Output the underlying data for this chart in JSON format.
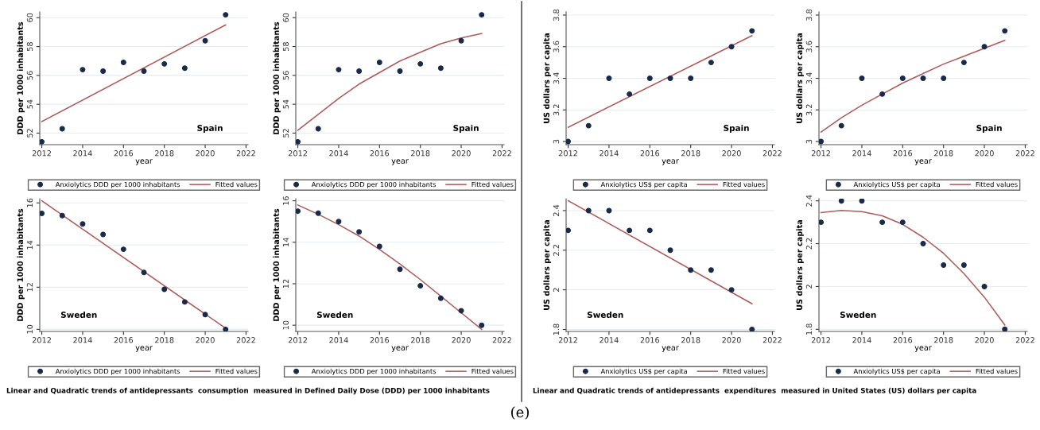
{
  "chart_data": [
    {
      "type": "scatter",
      "xlabel": "year",
      "ylabel": "DDD per 1000 inhabitants",
      "xlim": [
        2011.9,
        2022.1
      ],
      "xticks": [
        2012,
        2014,
        2016,
        2018,
        2020,
        2022
      ],
      "ylim": [
        51.2,
        60.4
      ],
      "yticks": [
        52,
        54,
        56,
        58,
        60
      ],
      "grid": "y",
      "legend": "bottom",
      "annotations": [
        "Spain"
      ],
      "series": [
        {
          "name": "Anxiolytics DDD per 1000 inhabitants",
          "marker": "circle",
          "color": "#1a2a4a",
          "x": [
            2012,
            2013,
            2014,
            2015,
            2016,
            2017,
            2018,
            2019,
            2020,
            2021
          ],
          "values": [
            51.4,
            52.3,
            56.4,
            56.3,
            56.9,
            56.3,
            56.8,
            56.5,
            58.4,
            60.2
          ]
        },
        {
          "name": "Fitted values",
          "type": "line",
          "color": "#b05a5a",
          "x": [
            2012,
            2021
          ],
          "values": [
            52.8,
            59.5
          ]
        }
      ]
    },
    {
      "type": "scatter",
      "xlabel": "year",
      "ylabel": "DDD per 1000 inhabitants",
      "xlim": [
        2011.9,
        2022.1
      ],
      "xticks": [
        2012,
        2014,
        2016,
        2018,
        2020,
        2022
      ],
      "ylim": [
        51.2,
        60.4
      ],
      "yticks": [
        52,
        54,
        56,
        58,
        60
      ],
      "grid": "y",
      "legend": "bottom",
      "annotations": [
        "Spain"
      ],
      "series": [
        {
          "name": "Anxiolytics DDD per 1000 inhabitants",
          "marker": "circle",
          "color": "#1a2a4a",
          "x": [
            2012,
            2013,
            2014,
            2015,
            2016,
            2017,
            2018,
            2019,
            2020,
            2021
          ],
          "values": [
            51.4,
            52.3,
            56.4,
            56.3,
            56.9,
            56.3,
            56.8,
            56.5,
            58.4,
            60.2
          ]
        },
        {
          "name": "Fitted values",
          "type": "line",
          "color": "#b05a5a",
          "x": [
            2012,
            2013,
            2014,
            2015,
            2016,
            2017,
            2018,
            2019,
            2020,
            2021
          ],
          "values": [
            52.2,
            53.3,
            54.4,
            55.4,
            56.2,
            57.0,
            57.6,
            58.2,
            58.6,
            58.9
          ]
        }
      ]
    },
    {
      "type": "scatter",
      "xlabel": "year",
      "ylabel": "US dollars per capita",
      "xlim": [
        2011.9,
        2022.1
      ],
      "xticks": [
        2012,
        2014,
        2016,
        2018,
        2020,
        2022
      ],
      "ylim": [
        2.98,
        3.82
      ],
      "yticks": [
        3,
        3.2,
        3.4,
        3.6,
        3.8
      ],
      "grid": "y",
      "legend": "bottom",
      "annotations": [
        "Spain"
      ],
      "series": [
        {
          "name": "Anxiolytics US$ per capita",
          "marker": "circle",
          "color": "#1a2a4a",
          "x": [
            2012,
            2013,
            2014,
            2015,
            2016,
            2017,
            2018,
            2019,
            2020,
            2021
          ],
          "values": [
            3.0,
            3.1,
            3.4,
            3.3,
            3.4,
            3.4,
            3.4,
            3.5,
            3.6,
            3.7
          ]
        },
        {
          "name": "Fitted values",
          "type": "line",
          "color": "#b05a5a",
          "x": [
            2012,
            2021
          ],
          "values": [
            3.09,
            3.67
          ]
        }
      ]
    },
    {
      "type": "scatter",
      "xlabel": "year",
      "ylabel": "US dollars per capita",
      "xlim": [
        2011.9,
        2022.1
      ],
      "xticks": [
        2012,
        2014,
        2016,
        2018,
        2020,
        2022
      ],
      "ylim": [
        2.98,
        3.82
      ],
      "yticks": [
        3,
        3.2,
        3.4,
        3.6,
        3.8
      ],
      "grid": "y",
      "legend": "bottom",
      "annotations": [
        "Spain"
      ],
      "series": [
        {
          "name": "Anxiolytics US$ per capita",
          "marker": "circle",
          "color": "#1a2a4a",
          "x": [
            2012,
            2013,
            2014,
            2015,
            2016,
            2017,
            2018,
            2019,
            2020,
            2021
          ],
          "values": [
            3.0,
            3.1,
            3.4,
            3.3,
            3.4,
            3.4,
            3.4,
            3.5,
            3.6,
            3.7
          ]
        },
        {
          "name": "Fitted values",
          "type": "line",
          "color": "#b05a5a",
          "x": [
            2012,
            2013,
            2014,
            2015,
            2016,
            2017,
            2018,
            2019,
            2020,
            2021
          ],
          "values": [
            3.06,
            3.15,
            3.23,
            3.3,
            3.37,
            3.43,
            3.49,
            3.54,
            3.59,
            3.64
          ]
        }
      ]
    },
    {
      "type": "scatter",
      "xlabel": "year",
      "ylabel": "DDD per 1000 inhabitants",
      "xlim": [
        2011.9,
        2022.1
      ],
      "xticks": [
        2012,
        2014,
        2016,
        2018,
        2020,
        2022
      ],
      "ylim": [
        9.9,
        16.2
      ],
      "yticks": [
        10,
        12,
        14,
        16
      ],
      "grid": "y",
      "legend": "bottom",
      "annotations": [
        "Sweden",
        "Linear and Quadratic trends of antidepressants  consumption  measured in Defined Daily Dose (DDD) per 1000 inhabitants"
      ],
      "series": [
        {
          "name": "Anxiolytics DDD per 1000 inhabitants",
          "marker": "circle",
          "color": "#1a2a4a",
          "x": [
            2012,
            2013,
            2014,
            2015,
            2016,
            2017,
            2018,
            2019,
            2020,
            2021
          ],
          "values": [
            15.5,
            15.4,
            15.0,
            14.5,
            13.8,
            12.7,
            11.9,
            11.3,
            10.7,
            10.0
          ]
        },
        {
          "name": "Fitted values",
          "type": "line",
          "color": "#b05a5a",
          "x": [
            2012,
            2021
          ],
          "values": [
            16.1,
            10.05
          ]
        }
      ]
    },
    {
      "type": "scatter",
      "xlabel": "year",
      "ylabel": "DDD per 1000 inhabitants",
      "xlim": [
        2011.9,
        2022.1
      ],
      "xticks": [
        2012,
        2014,
        2016,
        2018,
        2020,
        2022
      ],
      "ylim": [
        9.7,
        16.1
      ],
      "yticks": [
        10,
        12,
        14,
        16
      ],
      "grid": "y",
      "legend": "bottom",
      "annotations": [
        "Sweden"
      ],
      "series": [
        {
          "name": "Anxiolytics DDD per 1000 inhabitants",
          "marker": "circle",
          "color": "#1a2a4a",
          "x": [
            2012,
            2013,
            2014,
            2015,
            2016,
            2017,
            2018,
            2019,
            2020,
            2021
          ],
          "values": [
            15.5,
            15.4,
            15.0,
            14.5,
            13.8,
            12.7,
            11.9,
            11.3,
            10.7,
            10.0
          ]
        },
        {
          "name": "Fitted values",
          "type": "line",
          "color": "#b05a5a",
          "x": [
            2012,
            2013,
            2014,
            2015,
            2016,
            2017,
            2018,
            2019,
            2020,
            2021
          ],
          "values": [
            15.8,
            15.35,
            14.85,
            14.3,
            13.65,
            12.95,
            12.2,
            11.4,
            10.6,
            9.8
          ]
        }
      ]
    },
    {
      "type": "scatter",
      "xlabel": "year",
      "ylabel": "US dollars per capita",
      "xlim": [
        2011.9,
        2022.1
      ],
      "xticks": [
        2012,
        2014,
        2016,
        2018,
        2020,
        2022
      ],
      "ylim": [
        1.79,
        2.46
      ],
      "yticks": [
        1.8,
        2,
        2.2,
        2.4
      ],
      "grid": "y",
      "legend": "bottom",
      "annotations": [
        "Sweden",
        "Linear and Quadratic trends of antidepressants  expenditures  measured in United States (US) dollars per capita"
      ],
      "series": [
        {
          "name": "Anxiolytics US$ per capita",
          "marker": "circle",
          "color": "#1a2a4a",
          "x": [
            2012,
            2013,
            2014,
            2015,
            2016,
            2017,
            2018,
            2019,
            2020,
            2021
          ],
          "values": [
            2.3,
            2.4,
            2.4,
            2.3,
            2.3,
            2.2,
            2.1,
            2.1,
            2.0,
            1.8
          ]
        },
        {
          "name": "Fitted values",
          "type": "line",
          "color": "#b05a5a",
          "x": [
            2012,
            2021
          ],
          "values": [
            2.45,
            1.93
          ]
        }
      ]
    },
    {
      "type": "scatter",
      "xlabel": "year",
      "ylabel": "US dollars per capita",
      "xlim": [
        2011.9,
        2022.1
      ],
      "xticks": [
        2012,
        2014,
        2016,
        2018,
        2020,
        2022
      ],
      "ylim": [
        1.79,
        2.41
      ],
      "yticks": [
        1.8,
        2,
        2.2,
        2.4
      ],
      "grid": "y",
      "legend": "bottom",
      "annotations": [
        "Sweden",
        "(e)"
      ],
      "series": [
        {
          "name": "Anxiolytics US$ per capita",
          "marker": "circle",
          "color": "#1a2a4a",
          "x": [
            2012,
            2013,
            2014,
            2015,
            2016,
            2017,
            2018,
            2019,
            2020,
            2021
          ],
          "values": [
            2.3,
            2.4,
            2.4,
            2.3,
            2.3,
            2.2,
            2.1,
            2.1,
            2.0,
            1.8
          ]
        },
        {
          "name": "Fitted values",
          "type": "line",
          "color": "#b05a5a",
          "x": [
            2012,
            2013,
            2014,
            2015,
            2016,
            2017,
            2018,
            2019,
            2020,
            2021
          ],
          "values": [
            2.345,
            2.355,
            2.35,
            2.33,
            2.29,
            2.23,
            2.155,
            2.06,
            1.95,
            1.82
          ]
        }
      ]
    }
  ]
}
